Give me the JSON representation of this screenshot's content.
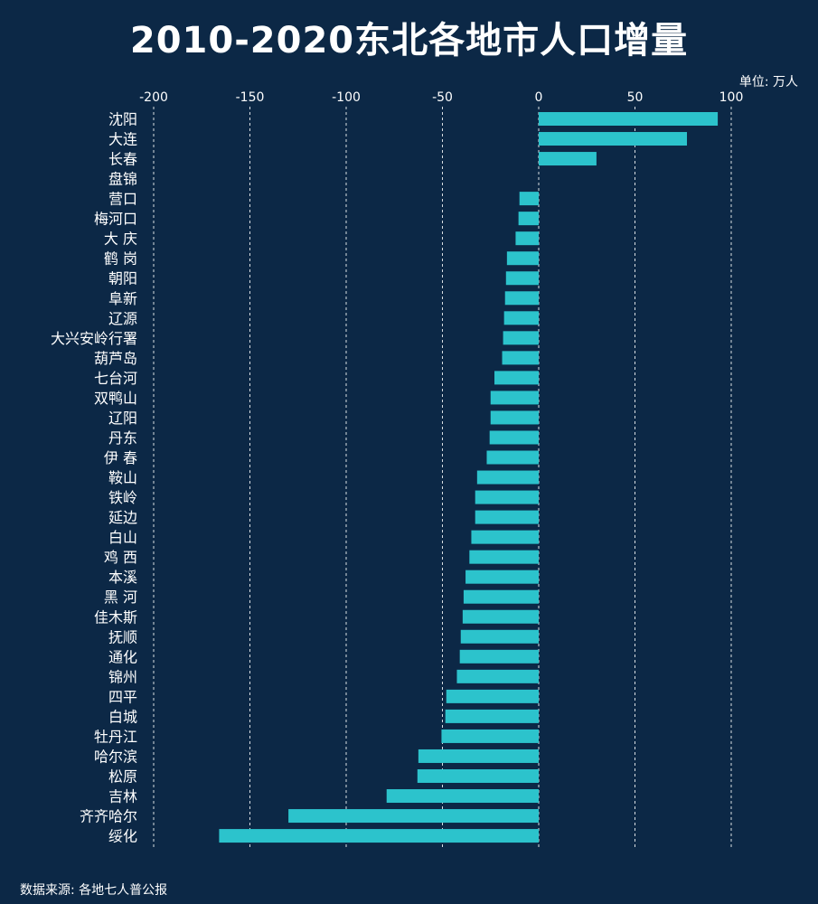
{
  "title": "2010-2020东北各地市人口增量",
  "unit": "单位: 万人",
  "source": "数据来源: 各地七人普公报",
  "colors": {
    "background": "#0c2846",
    "bar": "#2cc3cc",
    "grid": "#ffffff"
  },
  "chart_data": {
    "type": "bar",
    "orientation": "horizontal",
    "categories": [
      "沈阳",
      "大连",
      "长春",
      "盘锦",
      "营口",
      "梅河口",
      "大 庆",
      "鹤 岗",
      "朝阳",
      "阜新",
      "辽源",
      "大兴安岭行署",
      "葫芦岛",
      "七台河",
      "双鸭山",
      "辽阳",
      "丹东",
      "伊 春",
      "鞍山",
      "铁岭",
      "延边",
      "白山",
      "鸡 西",
      "本溪",
      "黑 河",
      "佳木斯",
      "抚顺",
      "通化",
      "锦州",
      "四平",
      "白城",
      "牡丹江",
      "哈尔滨",
      "松原",
      "吉林",
      "齐齐哈尔",
      "绥化"
    ],
    "values": [
      93,
      77,
      30,
      0,
      -10,
      -10.5,
      -12,
      -16.5,
      -17,
      -17.5,
      -18,
      -18.5,
      -19,
      -23,
      -25,
      -25,
      -25.5,
      -27,
      -32,
      -33,
      -33,
      -35,
      -36,
      -38,
      -39,
      -39.5,
      -40.5,
      -41,
      -42.5,
      -48,
      -48.5,
      -50.5,
      -62.5,
      -63,
      -79,
      -130,
      -166
    ],
    "xlim": [
      -200,
      100
    ],
    "xticks": [
      "-200",
      "-150",
      "-100",
      "-50",
      "0",
      "50",
      "100"
    ],
    "grid": "vertical-dashed"
  }
}
